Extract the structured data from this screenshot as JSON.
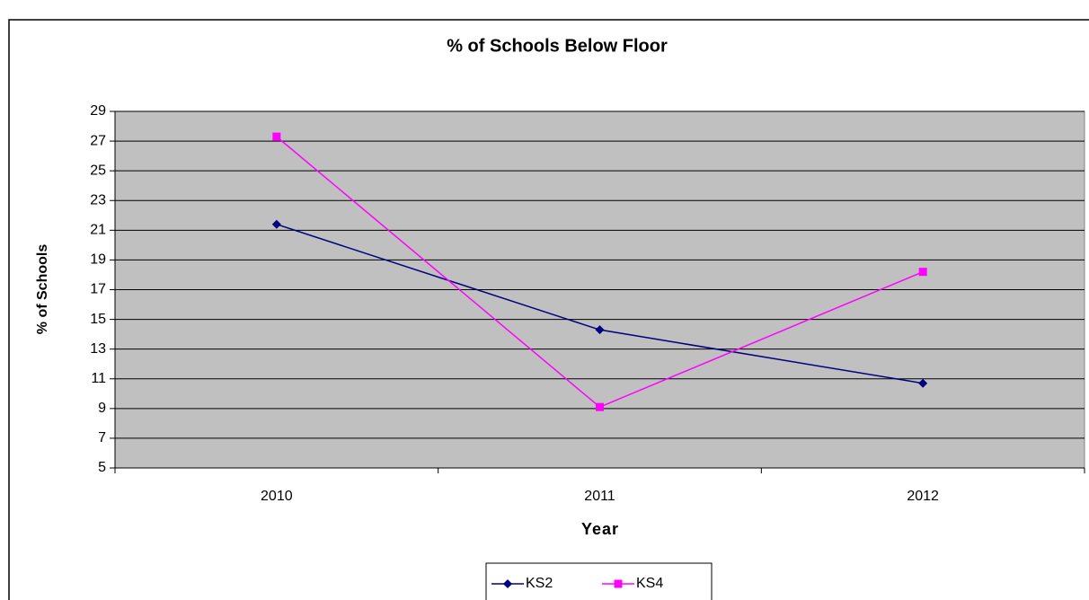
{
  "chart_data": {
    "type": "line",
    "title": "% of Schools Below Floor",
    "x_label": "Year",
    "y_label": "% of Schools",
    "categories": [
      "2010",
      "2011",
      "2012"
    ],
    "series": [
      {
        "name": "KS2",
        "color": "#000080",
        "marker": "diamond",
        "values": [
          21.4,
          14.3,
          10.7
        ]
      },
      {
        "name": "KS4",
        "color": "#ff00ff",
        "marker": "square",
        "values": [
          27.3,
          9.1,
          18.2
        ]
      }
    ],
    "ylim": [
      5,
      29
    ],
    "yticks": [
      5,
      7,
      9,
      11,
      13,
      15,
      17,
      19,
      21,
      23,
      25,
      27,
      29
    ],
    "grid": true,
    "legend": "bottom",
    "plot_background": "#c0c0c0"
  }
}
